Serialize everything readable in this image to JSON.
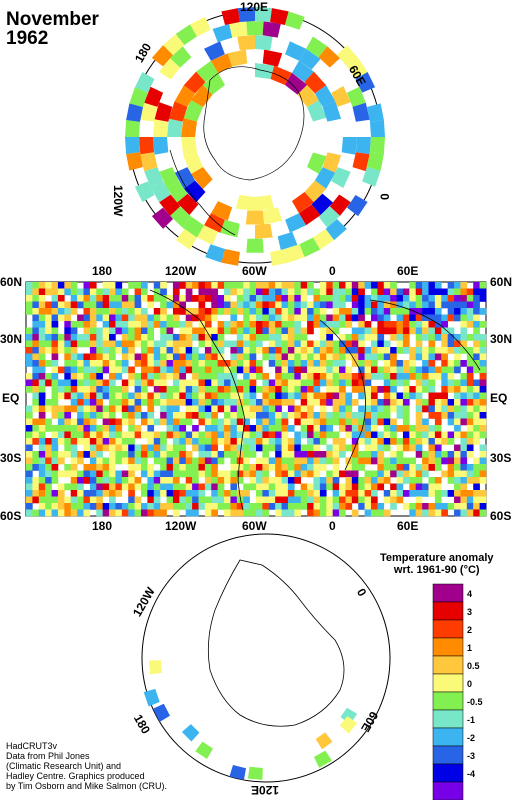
{
  "header": {
    "month": "November",
    "year": "1962"
  },
  "north_polar": {
    "labels": {
      "top": "120E",
      "left": "180",
      "right": "60E",
      "lower_left": "120W",
      "lower_right": "0"
    }
  },
  "world_map": {
    "lat_labels": [
      "60N",
      "30N",
      "EQ",
      "30S",
      "60S"
    ],
    "lon_labels": [
      "180",
      "120W",
      "60W",
      "0",
      "60E"
    ]
  },
  "south_polar": {
    "labels": {
      "upper_left": "120W",
      "upper_right": "0",
      "lower_left": "180",
      "lower_right": "60E",
      "bottom": "120E"
    }
  },
  "legend": {
    "title_line1": "Temperature anomaly",
    "title_line2": "wrt. 1961-90  (°C)",
    "bins": [
      {
        "label": "4",
        "color": "#a0008c"
      },
      {
        "label": "3",
        "color": "#e60000"
      },
      {
        "label": "2",
        "color": "#ff3c00"
      },
      {
        "label": "1",
        "color": "#ff8c00"
      },
      {
        "label": "0.5",
        "color": "#ffc83c"
      },
      {
        "label": "0",
        "color": "#fafa78"
      },
      {
        "label": "-0.5",
        "color": "#82f050"
      },
      {
        "label": "-1",
        "color": "#78e6c8"
      },
      {
        "label": "-2",
        "color": "#3cb4f0"
      },
      {
        "label": "-3",
        "color": "#2864e6"
      },
      {
        "label": "-4",
        "color": "#0000e6"
      },
      {
        "label": "",
        "color": "#7800e6"
      }
    ]
  },
  "credits": [
    "HadCRUT3v",
    "Data from Phil Jones",
    "(Climatic Research Unit) and",
    "Hadley Centre.  Graphics produced",
    "by Tim Osborn and Mike Salmon (CRU)."
  ]
}
